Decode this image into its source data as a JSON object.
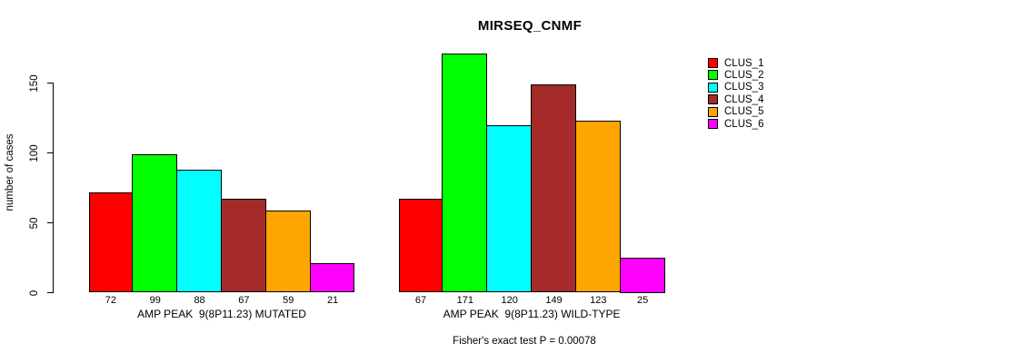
{
  "chart_data": {
    "type": "bar",
    "title": "MIRSEQ_CNMF",
    "ylabel": "number of cases",
    "footnote": "Fisher's exact test P = 0.00078",
    "yticks": [
      0,
      50,
      100,
      150
    ],
    "ylim": [
      0,
      171
    ],
    "grid": false,
    "legend_position": "right-outside",
    "legend": [
      {
        "label": "CLUS_1",
        "color": "#FF0000"
      },
      {
        "label": "CLUS_2",
        "color": "#00FF00"
      },
      {
        "label": "CLUS_3",
        "color": "#00FFFF"
      },
      {
        "label": "CLUS_4",
        "color": "#A52A2A"
      },
      {
        "label": "CLUS_5",
        "color": "#FFA500"
      },
      {
        "label": "CLUS_6",
        "color": "#FF00FF"
      }
    ],
    "groups": [
      {
        "label": "AMP PEAK  9(8P11.23) MUTATED",
        "values": [
          72,
          99,
          88,
          67,
          59,
          21
        ]
      },
      {
        "label": "AMP PEAK  9(8P11.23) WILD-TYPE",
        "values": [
          67,
          171,
          120,
          149,
          123,
          25
        ]
      }
    ],
    "bar_value_labels_shown": true
  },
  "colors": {
    "background": "#FFFFFF",
    "axis": "#000000",
    "text": "#000000"
  }
}
